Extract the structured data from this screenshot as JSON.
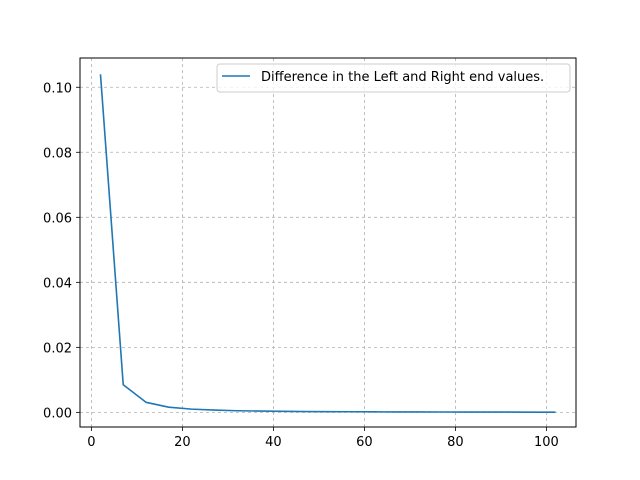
{
  "chart_data": {
    "type": "line",
    "title": "",
    "xlabel": "",
    "ylabel": "",
    "xlim": [
      -2.5,
      106.5
    ],
    "ylim": [
      -0.0045,
      0.109
    ],
    "xticks": [
      0,
      20,
      40,
      60,
      80,
      100
    ],
    "yticks": [
      0.0,
      0.02,
      0.04,
      0.06,
      0.08,
      0.1
    ],
    "xtick_labels": [
      "0",
      "20",
      "40",
      "60",
      "80",
      "100"
    ],
    "ytick_labels": [
      "0.00",
      "0.02",
      "0.04",
      "0.06",
      "0.08",
      "0.10"
    ],
    "grid": true,
    "legend_position": "top-right",
    "series": [
      {
        "name": "Difference in the Left and Right end values.",
        "color": "#1f77b4",
        "x": [
          2,
          7,
          12,
          17,
          22,
          27,
          32,
          37,
          42,
          47,
          52,
          57,
          62,
          67,
          72,
          77,
          82,
          87,
          92,
          97,
          102
        ],
        "y": [
          0.104,
          0.0085,
          0.0031,
          0.0016,
          0.001,
          0.0007,
          0.0005,
          0.0004,
          0.00032,
          0.00026,
          0.00022,
          0.00019,
          0.00016,
          0.00014,
          0.00012,
          0.00011,
          0.0001,
          9e-05,
          8e-05,
          7e-05,
          6e-05
        ]
      }
    ]
  }
}
